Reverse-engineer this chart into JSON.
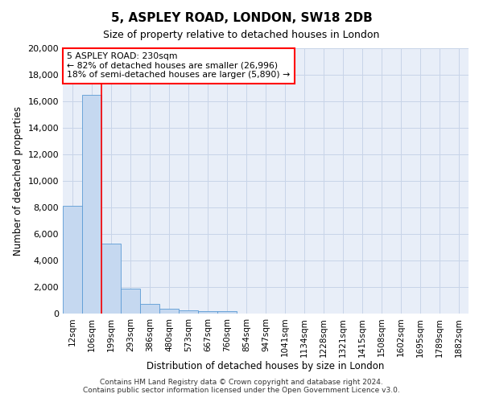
{
  "title": "5, ASPLEY ROAD, LONDON, SW18 2DB",
  "subtitle": "Size of property relative to detached houses in London",
  "xlabel": "Distribution of detached houses by size in London",
  "ylabel": "Number of detached properties",
  "bar_labels": [
    "12sqm",
    "106sqm",
    "199sqm",
    "293sqm",
    "386sqm",
    "480sqm",
    "573sqm",
    "667sqm",
    "760sqm",
    "854sqm",
    "947sqm",
    "1041sqm",
    "1134sqm",
    "1228sqm",
    "1321sqm",
    "1415sqm",
    "1508sqm",
    "1602sqm",
    "1695sqm",
    "1789sqm",
    "1882sqm"
  ],
  "bar_values": [
    8100,
    16500,
    5300,
    1850,
    750,
    350,
    270,
    170,
    170,
    0,
    0,
    0,
    0,
    0,
    0,
    0,
    0,
    0,
    0,
    0,
    0
  ],
  "bar_color": "#c5d8f0",
  "bar_edge_color": "#5b9bd5",
  "vline_bar_index": 2,
  "annotation_text": "5 ASPLEY ROAD: 230sqm\n← 82% of detached houses are smaller (26,996)\n18% of semi-detached houses are larger (5,890) →",
  "annotation_box_color": "white",
  "annotation_box_edge_color": "red",
  "vline_color": "red",
  "ylim": [
    0,
    20000
  ],
  "yticks": [
    0,
    2000,
    4000,
    6000,
    8000,
    10000,
    12000,
    14000,
    16000,
    18000,
    20000
  ],
  "grid_color": "#c8d4e8",
  "bg_color": "#e8eef8",
  "footer_line1": "Contains HM Land Registry data © Crown copyright and database right 2024.",
  "footer_line2": "Contains public sector information licensed under the Open Government Licence v3.0."
}
